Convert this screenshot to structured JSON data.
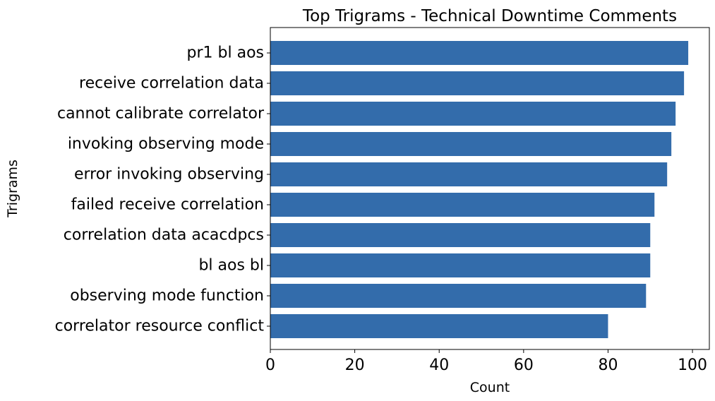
{
  "chart_data": {
    "type": "bar",
    "orientation": "horizontal",
    "title": "Top Trigrams - Technical Downtime Comments",
    "xlabel": "Count",
    "ylabel": "Trigrams",
    "categories": [
      "pr1 bl aos",
      "receive correlation data",
      "cannot calibrate correlator",
      "invoking observing mode",
      "error invoking observing",
      "failed receive correlation",
      "correlation data acacdpcs",
      "bl aos bl",
      "observing mode function",
      "correlator resource conflict"
    ],
    "values": [
      99,
      98,
      96,
      95,
      94,
      91,
      90,
      90,
      89,
      80
    ],
    "xlim": [
      0,
      104
    ],
    "xticks": [
      0,
      20,
      40,
      60,
      80,
      100
    ],
    "bar_color": "#336cab",
    "grid": false,
    "legend": "none"
  }
}
